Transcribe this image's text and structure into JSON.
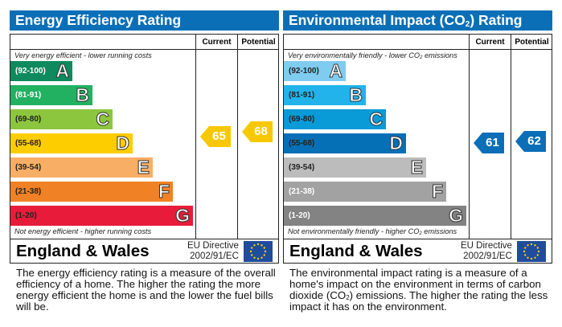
{
  "colors": {
    "header_bg": "#0b6fb7",
    "energy_arrow": "#f7c800",
    "env_arrow": "#0b6fb7",
    "flag_bg": "#1f4c9c",
    "flag_star": "#f3d20b"
  },
  "energy": {
    "title": "Energy Efficiency Rating",
    "col_current": "Current",
    "col_potential": "Potential",
    "top_note": "Very energy efficient - lower running costs",
    "bottom_note": "Not energy efficient - higher running costs",
    "bands": [
      {
        "range": "(92-100)",
        "letter": "A",
        "color": "#0e8a5e",
        "text_color": "#ffffff"
      },
      {
        "range": "(81-91)",
        "letter": "B",
        "color": "#22b061",
        "text_color": "#ffffff"
      },
      {
        "range": "(69-80)",
        "letter": "C",
        "color": "#8cc63f",
        "text_color": "#222222"
      },
      {
        "range": "(55-68)",
        "letter": "D",
        "color": "#fecd00",
        "text_color": "#222222"
      },
      {
        "range": "(39-54)",
        "letter": "E",
        "color": "#f8ae65",
        "text_color": "#222222"
      },
      {
        "range": "(21-38)",
        "letter": "F",
        "color": "#f08125",
        "text_color": "#222222"
      },
      {
        "range": "(1-20)",
        "letter": "G",
        "color": "#e81c3a",
        "text_color": "#222222"
      }
    ],
    "current": "65",
    "potential": "68",
    "current_value": 65,
    "potential_value": 68,
    "region": "England & Wales",
    "directive_line1": "EU Directive",
    "directive_line2": "2002/91/EC",
    "description": "The energy efficiency rating is a measure of the overall efficiency of a home. The higher the rating the more energy efficient the home is and the lower the fuel bills will be."
  },
  "environment": {
    "title_pre": "Environmental Impact (CO",
    "title_sub": "2",
    "title_post": ") Rating",
    "col_current": "Current",
    "col_potential": "Potential",
    "top_note_pre": "Very environmentally friendly - lower CO",
    "top_note_sub": "2",
    "top_note_post": " emissions",
    "bottom_note_pre": "Not environmentally friendly - higher CO",
    "bottom_note_sub": "2",
    "bottom_note_post": " emissions",
    "bands": [
      {
        "range": "(92-100)",
        "letter": "A",
        "color": "#80ccf1",
        "text_color": "#222222"
      },
      {
        "range": "(81-91)",
        "letter": "B",
        "color": "#22b3ea",
        "text_color": "#222222"
      },
      {
        "range": "(69-80)",
        "letter": "C",
        "color": "#099ad8",
        "text_color": "#222222"
      },
      {
        "range": "(55-68)",
        "letter": "D",
        "color": "#0670b6",
        "text_color": "#222222"
      },
      {
        "range": "(39-54)",
        "letter": "E",
        "color": "#bcbcbc",
        "text_color": "#222222"
      },
      {
        "range": "(21-38)",
        "letter": "F",
        "color": "#a2a2a2",
        "text_color": "#ffffff"
      },
      {
        "range": "(1-20)",
        "letter": "G",
        "color": "#838383",
        "text_color": "#ffffff"
      }
    ],
    "current": "61",
    "potential": "62",
    "current_value": 61,
    "potential_value": 62,
    "region": "England & Wales",
    "directive_line1": "EU Directive",
    "directive_line2": "2002/91/EC",
    "desc_pre": "The environmental impact rating is a measure of a home's impact on the environment in terms of carbon dioxide (CO",
    "desc_sub": "2",
    "desc_post": ") emissions. The higher the rating the less impact it has on the environment."
  }
}
